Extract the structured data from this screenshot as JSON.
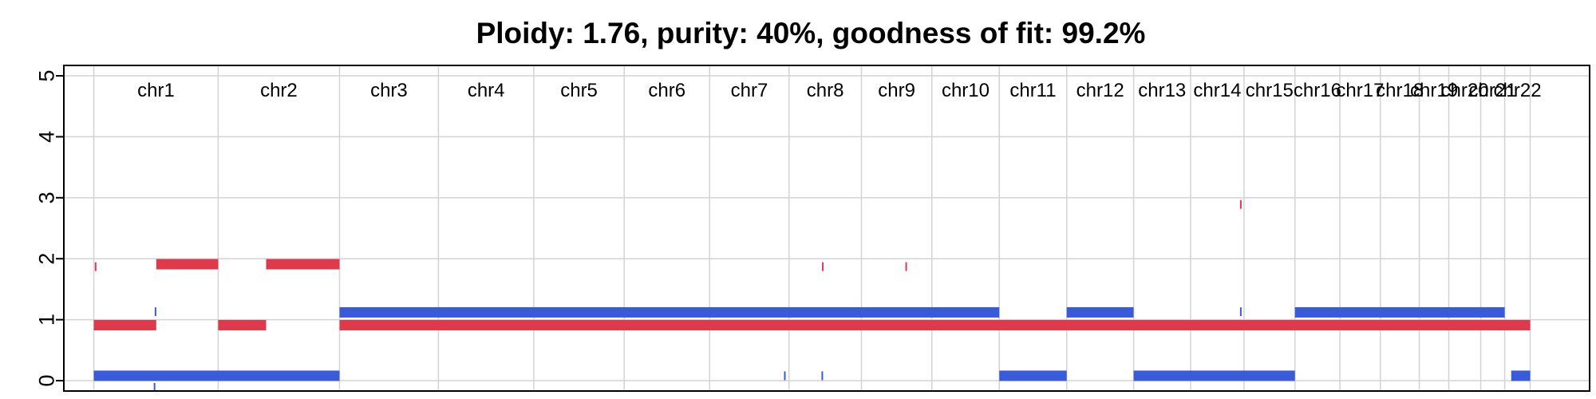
{
  "chart_data": {
    "type": "segment",
    "title": "Ploidy: 1.76, purity: 40%, goodness of fit: 99.2%",
    "xlabel": "",
    "ylabel": "",
    "ylim": [
      0,
      5
    ],
    "yticks": [
      "0",
      "1",
      "2",
      "3",
      "4",
      "5"
    ],
    "grid": true,
    "colors": {
      "major_allele": "#e0394b",
      "minor_allele": "#3a5bd9",
      "grid": "#d3d3d3",
      "axis": "#000000"
    },
    "chromosomes": [
      {
        "name": "chr1",
        "start": 0,
        "end": 249
      },
      {
        "name": "chr2",
        "start": 249,
        "end": 492
      },
      {
        "name": "chr3",
        "start": 492,
        "end": 690
      },
      {
        "name": "chr4",
        "start": 690,
        "end": 881
      },
      {
        "name": "chr5",
        "start": 881,
        "end": 1062
      },
      {
        "name": "chr6",
        "start": 1062,
        "end": 1233
      },
      {
        "name": "chr7",
        "start": 1233,
        "end": 1392
      },
      {
        "name": "chr8",
        "start": 1392,
        "end": 1537
      },
      {
        "name": "chr9",
        "start": 1537,
        "end": 1678
      },
      {
        "name": "chr10",
        "start": 1678,
        "end": 1813
      },
      {
        "name": "chr11",
        "start": 1813,
        "end": 1948
      },
      {
        "name": "chr12",
        "start": 1948,
        "end": 2082
      },
      {
        "name": "chr13",
        "start": 2082,
        "end": 2196
      },
      {
        "name": "chr14",
        "start": 2196,
        "end": 2303
      },
      {
        "name": "chr15",
        "start": 2303,
        "end": 2405
      },
      {
        "name": "chr16",
        "start": 2405,
        "end": 2495
      },
      {
        "name": "chr17",
        "start": 2495,
        "end": 2576
      },
      {
        "name": "chr18",
        "start": 2576,
        "end": 2654
      },
      {
        "name": "chr19",
        "start": 2654,
        "end": 2713
      },
      {
        "name": "chr20",
        "start": 2713,
        "end": 2777
      },
      {
        "name": "chr21",
        "start": 2777,
        "end": 2825
      },
      {
        "name": "chr22",
        "start": 2825,
        "end": 2876
      }
    ],
    "x_domain": [
      -60,
      2995
    ],
    "series": [
      {
        "name": "major",
        "color": "#e0394b",
        "segments": [
          {
            "start": 2,
            "end": 4,
            "cn": 1.87
          },
          {
            "start": 0,
            "end": 125,
            "cn": 0.91
          },
          {
            "start": 125,
            "end": 249,
            "cn": 1.91
          },
          {
            "start": 249,
            "end": 345,
            "cn": 0.91
          },
          {
            "start": 345,
            "end": 492,
            "cn": 1.91
          },
          {
            "start": 492,
            "end": 2876,
            "cn": 0.91
          },
          {
            "start": 1458,
            "end": 1461,
            "cn": 1.87
          },
          {
            "start": 1625,
            "end": 1628,
            "cn": 1.87
          },
          {
            "start": 2295,
            "end": 2297,
            "cn": 2.89
          }
        ]
      },
      {
        "name": "minor",
        "color": "#3a5bd9",
        "segments": [
          {
            "start": 0,
            "end": 492,
            "cn": 0.08
          },
          {
            "start": 122,
            "end": 124,
            "cn": 1.13
          },
          {
            "start": 120,
            "end": 122,
            "cn": -0.11
          },
          {
            "start": 492,
            "end": 1813,
            "cn": 1.12
          },
          {
            "start": 1382,
            "end": 1385,
            "cn": 0.08
          },
          {
            "start": 1457,
            "end": 1460,
            "cn": 0.08
          },
          {
            "start": 1813,
            "end": 1948,
            "cn": 0.08
          },
          {
            "start": 1948,
            "end": 2082,
            "cn": 1.12
          },
          {
            "start": 2082,
            "end": 2405,
            "cn": 0.08
          },
          {
            "start": 2295,
            "end": 2297,
            "cn": 1.13
          },
          {
            "start": 2405,
            "end": 2825,
            "cn": 1.12
          },
          {
            "start": 2838,
            "end": 2876,
            "cn": 0.08
          }
        ]
      }
    ]
  }
}
